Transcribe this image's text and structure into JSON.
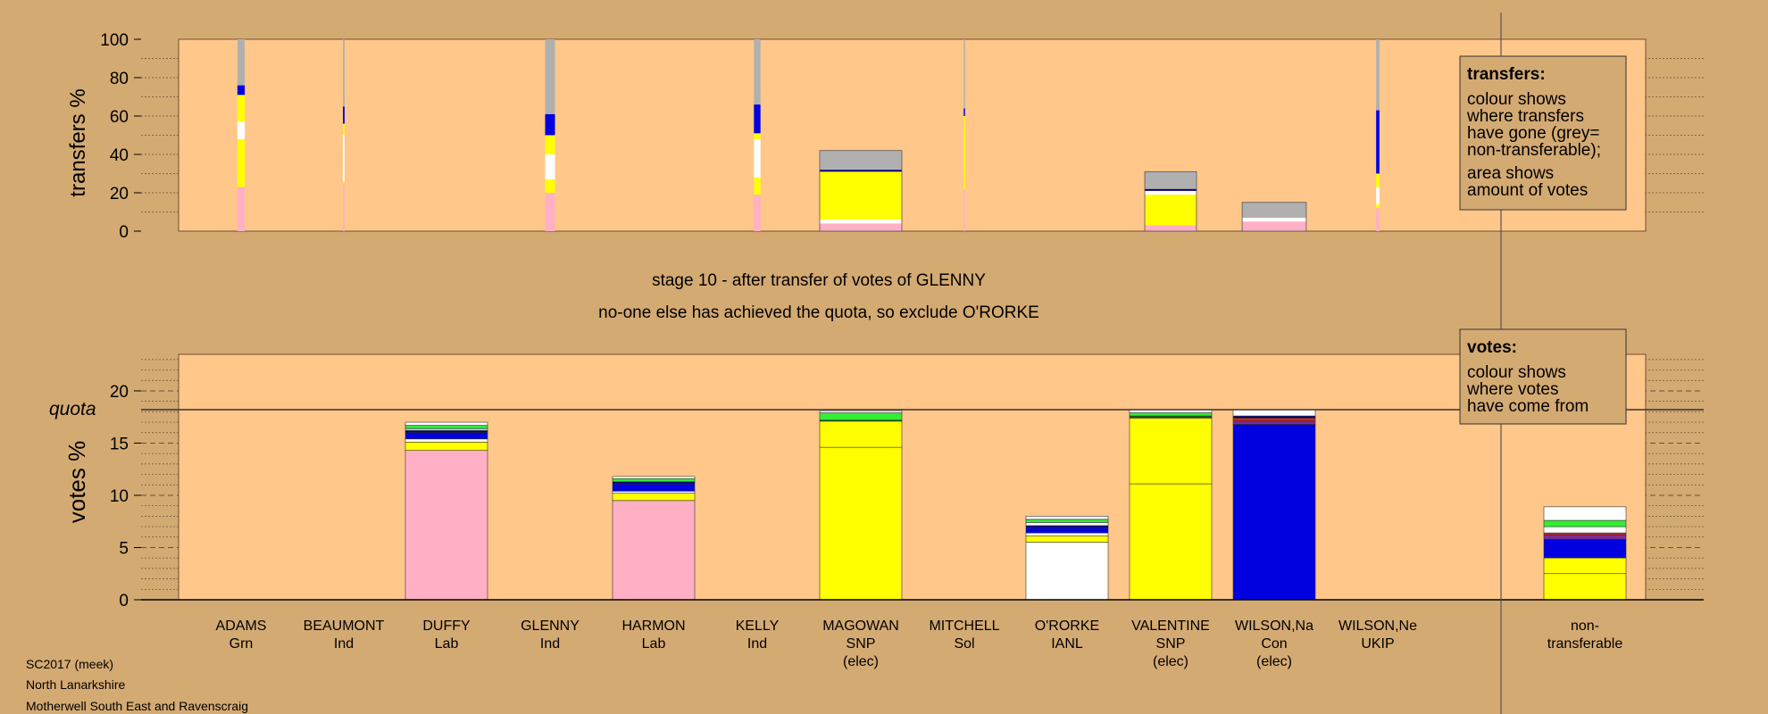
{
  "colors": {
    "background": "#d4aa73",
    "panel": "#ffc78a",
    "pink": "#ffb0c4",
    "yellow": "#ffff00",
    "white": "#ffffff",
    "blue": "#0000e0",
    "grey": "#b0b0b0",
    "green": "#33ee33",
    "black": "#000000",
    "navy": "#00007a",
    "purple": "#7a2e9a",
    "red": "#cc2222",
    "lightblue": "#aaccff",
    "darkgreen": "#116611"
  },
  "titles": {
    "stage": "stage 10 - after transfer of votes of GLENNY",
    "action": "no-one else has achieved the quota, so exclude O'RORKE"
  },
  "footer": {
    "line1": "SC2017 (meek)",
    "line2": "North Lanarkshire",
    "line3": "Motherwell South East and Ravenscraig"
  },
  "legends": {
    "transfers": {
      "title": "transfers:",
      "lines": [
        "colour shows",
        "where transfers",
        "have gone (grey=",
        "non-transferable);",
        "area shows",
        "amount of votes"
      ]
    },
    "votes": {
      "title": "votes:",
      "lines": [
        "colour shows",
        "where votes",
        "have come from"
      ]
    }
  },
  "quota_label": "quota",
  "chart_data": [
    {
      "type": "bar",
      "name": "transfers",
      "ylabel": "transfers %",
      "ylim": [
        0,
        100
      ],
      "yticks": [
        0,
        20,
        40,
        60,
        80,
        100
      ],
      "grid": "dotted",
      "categories": [
        "ADAMS",
        "BEAUMONT",
        "DUFFY",
        "GLENNY",
        "HARMON",
        "KELLY",
        "MAGOWAN",
        "MITCHELL",
        "O'RORKE",
        "VALENTINE",
        "WILSON,Na",
        "WILSON,Ne",
        "non-transferable"
      ],
      "bars": [
        {
          "candidate": "ADAMS",
          "width_share": 0.09,
          "segments": [
            [
              "pink",
              23
            ],
            [
              "yellow",
              25
            ],
            [
              "white",
              9
            ],
            [
              "yellow",
              14
            ],
            [
              "blue",
              5
            ],
            [
              "grey",
              24
            ]
          ]
        },
        {
          "candidate": "BEAUMONT",
          "width_share": 0.02,
          "segments": [
            [
              "pink",
              25
            ],
            [
              "yellow",
              1
            ],
            [
              "white",
              24
            ],
            [
              "yellow",
              6
            ],
            [
              "blue",
              9
            ],
            [
              "grey",
              35
            ]
          ]
        },
        {
          "candidate": "GLENNY",
          "width_share": 0.12,
          "segments": [
            [
              "pink",
              20
            ],
            [
              "yellow",
              7
            ],
            [
              "white",
              13
            ],
            [
              "yellow",
              10
            ],
            [
              "blue",
              11
            ],
            [
              "grey",
              39
            ]
          ]
        },
        {
          "candidate": "KELLY",
          "width_share": 0.08,
          "segments": [
            [
              "pink",
              19
            ],
            [
              "yellow",
              9
            ],
            [
              "white",
              20
            ],
            [
              "yellow",
              3
            ],
            [
              "blue",
              15
            ],
            [
              "grey",
              34
            ]
          ]
        },
        {
          "candidate": "MAGOWAN",
          "width_share": 1.0,
          "segments": [
            [
              "pink",
              4
            ],
            [
              "white",
              2
            ],
            [
              "yellow",
              25
            ],
            [
              "navy",
              1
            ],
            [
              "grey",
              10
            ]
          ]
        },
        {
          "candidate": "MITCHELL",
          "width_share": 0.015,
          "segments": [
            [
              "pink",
              22
            ],
            [
              "yellow",
              38
            ],
            [
              "blue",
              4
            ],
            [
              "grey",
              36
            ]
          ]
        },
        {
          "candidate": "VALENTINE",
          "width_share": 0.63,
          "segments": [
            [
              "pink",
              3
            ],
            [
              "yellow",
              16
            ],
            [
              "white",
              2
            ],
            [
              "navy",
              1
            ],
            [
              "grey",
              9
            ]
          ]
        },
        {
          "candidate": "WILSON,Na",
          "width_share": 0.78,
          "segments": [
            [
              "pink",
              5
            ],
            [
              "white",
              2
            ],
            [
              "grey",
              8
            ]
          ]
        },
        {
          "candidate": "WILSON,Ne",
          "width_share": 0.04,
          "segments": [
            [
              "pink",
              12
            ],
            [
              "yellow",
              2
            ],
            [
              "white",
              9
            ],
            [
              "yellow",
              7
            ],
            [
              "blue",
              33
            ],
            [
              "grey",
              37
            ]
          ]
        }
      ]
    },
    {
      "type": "bar",
      "name": "votes",
      "ylabel": "votes %",
      "ylim": [
        0,
        23.5
      ],
      "yticks": [
        0,
        5,
        10,
        15,
        20
      ],
      "quota": 18.2,
      "grid": "dashed",
      "candidates": [
        {
          "name": "ADAMS",
          "party": "Grn",
          "elected": false,
          "segments": []
        },
        {
          "name": "BEAUMONT",
          "party": "Ind",
          "elected": false,
          "segments": []
        },
        {
          "name": "DUFFY",
          "party": "Lab",
          "elected": false,
          "segments": [
            [
              "pink",
              14.3
            ],
            [
              "yellow",
              0.8
            ],
            [
              "white",
              0.3
            ],
            [
              "blue",
              0.6
            ],
            [
              "navy",
              0.2
            ],
            [
              "lightblue",
              0.2
            ],
            [
              "green",
              0.3
            ],
            [
              "white",
              0.3
            ]
          ]
        },
        {
          "name": "GLENNY",
          "party": "Ind",
          "elected": false,
          "segments": []
        },
        {
          "name": "HARMON",
          "party": "Lab",
          "elected": false,
          "segments": [
            [
              "pink",
              9.5
            ],
            [
              "yellow",
              0.7
            ],
            [
              "white",
              0.2
            ],
            [
              "blue",
              0.7
            ],
            [
              "navy",
              0.2
            ],
            [
              "green",
              0.3
            ],
            [
              "white",
              0.2
            ]
          ]
        },
        {
          "name": "KELLY",
          "party": "Ind",
          "elected": false,
          "segments": []
        },
        {
          "name": "MAGOWAN",
          "party": "SNP",
          "elected": true,
          "segments": [
            [
              "yellow",
              14.6
            ],
            [
              "yellow",
              2.5
            ],
            [
              "darkgreen",
              0.1
            ],
            [
              "green",
              0.7
            ],
            [
              "white",
              0.2
            ]
          ]
        },
        {
          "name": "MITCHELL",
          "party": "Sol",
          "elected": false,
          "segments": []
        },
        {
          "name": "O'RORKE",
          "party": "IANL",
          "elected": false,
          "segments": [
            [
              "white",
              5.5
            ],
            [
              "yellow",
              0.6
            ],
            [
              "white",
              0.3
            ],
            [
              "blue",
              0.5
            ],
            [
              "navy",
              0.2
            ],
            [
              "white",
              0.3
            ],
            [
              "green",
              0.3
            ],
            [
              "white",
              0.3
            ]
          ]
        },
        {
          "name": "VALENTINE",
          "party": "SNP",
          "elected": true,
          "segments": [
            [
              "yellow",
              11.1
            ],
            [
              "yellow",
              6.3
            ],
            [
              "darkgreen",
              0.2
            ],
            [
              "green",
              0.3
            ],
            [
              "white",
              0.3
            ]
          ]
        },
        {
          "name": "WILSON,Na",
          "party": "Con",
          "elected": true,
          "segments": [
            [
              "blue",
              16.8
            ],
            [
              "purple",
              0.3
            ],
            [
              "red",
              0.3
            ],
            [
              "navy",
              0.2
            ],
            [
              "white",
              0.6
            ]
          ]
        },
        {
          "name": "WILSON,Ne",
          "party": "UKIP",
          "elected": false,
          "segments": []
        }
      ],
      "nontransferable": {
        "label": "non-transferable",
        "segments": [
          [
            "yellow",
            2.5
          ],
          [
            "yellow",
            1.5
          ],
          [
            "blue",
            1.8
          ],
          [
            "purple",
            0.4
          ],
          [
            "red",
            0.2
          ],
          [
            "white",
            0.6
          ],
          [
            "green",
            0.6
          ],
          [
            "white",
            1.3
          ]
        ]
      },
      "elected_label": "(elec)"
    }
  ]
}
